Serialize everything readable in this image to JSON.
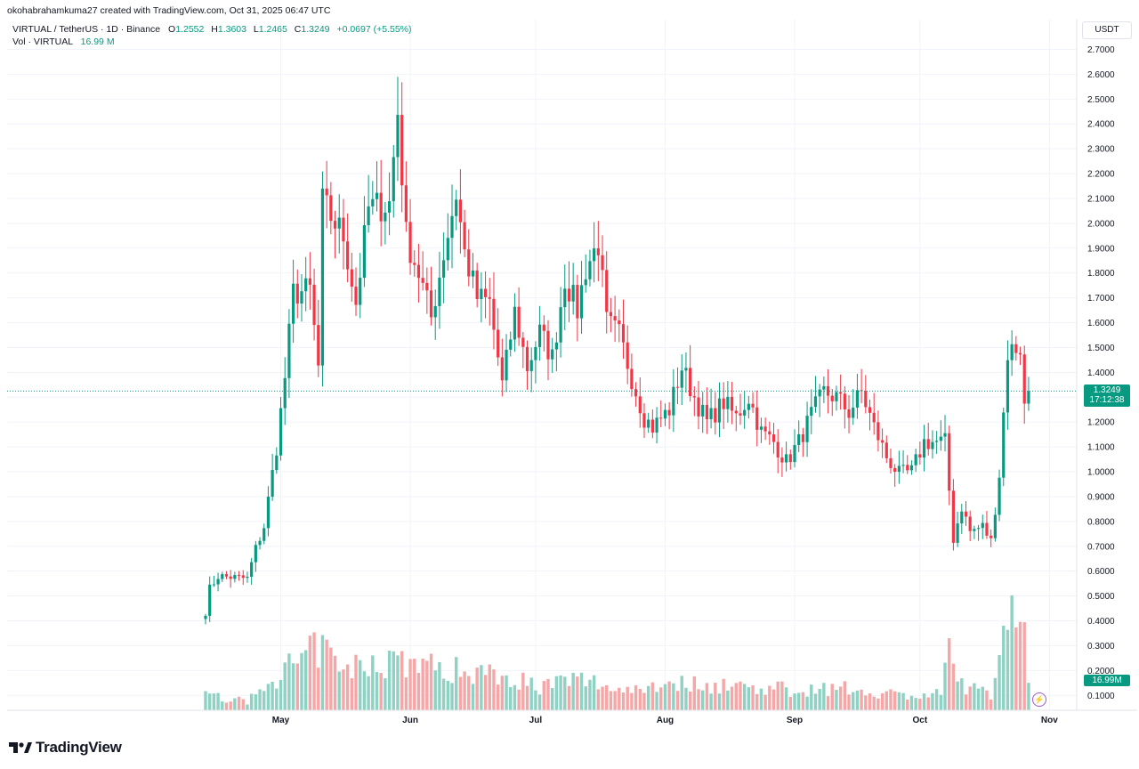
{
  "credit": "okohabrahamkuma27 created with TradingView.com, Oct 31, 2025 06:47 UTC",
  "symbol_line": {
    "symbol": "VIRTUAL / TetherUS · 1D · Binance",
    "o_label": "O",
    "o_value": "1.2552",
    "h_label": "H",
    "h_value": "1.3603",
    "l_label": "L",
    "l_value": "1.2465",
    "c_label": "C",
    "c_value": "1.3249",
    "change": "+0.0697 (+5.55%)"
  },
  "volume_line": {
    "label": "Vol · VIRTUAL",
    "value": "16.99 M"
  },
  "currency": "USDT",
  "price_badge": {
    "price": "1.3249",
    "countdown": "17:12:38"
  },
  "volume_badge": "16.99M",
  "brand": "TradingView",
  "colors": {
    "up": "#089981",
    "down": "#f23645",
    "up_vol": "#8fd1c3",
    "down_vol": "#f5a7a7"
  },
  "chart_data": {
    "type": "candlestick",
    "y_ticks": [
      "2.7000",
      "2.6000",
      "2.5000",
      "2.4000",
      "2.3000",
      "2.2000",
      "2.1000",
      "2.0000",
      "1.9000",
      "1.8000",
      "1.7000",
      "1.6000",
      "1.5000",
      "1.4000",
      "1.3000",
      "1.2000",
      "1.1000",
      "1.0000",
      "0.9000",
      "0.8000",
      "0.7000",
      "0.6000",
      "0.5000",
      "0.4000",
      "0.3000",
      "0.2000",
      "0.1000"
    ],
    "ylim": [
      0.04,
      2.82
    ],
    "x_ticks": [
      {
        "label": "May",
        "day": 18
      },
      {
        "label": "Jun",
        "day": 49
      },
      {
        "label": "Jul",
        "day": 79
      },
      {
        "label": "Aug",
        "day": 110
      },
      {
        "label": "Sep",
        "day": 141
      },
      {
        "label": "Oct",
        "day": 171
      },
      {
        "label": "Nov",
        "day": 202
      }
    ],
    "last_price": 1.3249,
    "volume_ref": [
      0,
      0.14
    ],
    "keyframes": [
      [
        0,
        0.42
      ],
      [
        1,
        0.53
      ],
      [
        3,
        0.58
      ],
      [
        10,
        0.57
      ],
      [
        12,
        0.69
      ],
      [
        14,
        0.78
      ],
      [
        17,
        1.1
      ],
      [
        19,
        1.38
      ],
      [
        21,
        1.72
      ],
      [
        25,
        1.73
      ],
      [
        27,
        1.42
      ],
      [
        28,
        2.08
      ],
      [
        33,
        1.95
      ],
      [
        36,
        1.68
      ],
      [
        39,
        2.06
      ],
      [
        44,
        2.08
      ],
      [
        46,
        2.45
      ],
      [
        48,
        1.95
      ],
      [
        51,
        1.8
      ],
      [
        54,
        1.62
      ],
      [
        57,
        1.88
      ],
      [
        60,
        2.12
      ],
      [
        62,
        1.88
      ],
      [
        65,
        1.7
      ],
      [
        68,
        1.68
      ],
      [
        71,
        1.35
      ],
      [
        74,
        1.64
      ],
      [
        77,
        1.42
      ],
      [
        80,
        1.56
      ],
      [
        83,
        1.46
      ],
      [
        86,
        1.78
      ],
      [
        89,
        1.65
      ],
      [
        91,
        1.82
      ],
      [
        94,
        1.92
      ],
      [
        96,
        1.6
      ],
      [
        99,
        1.55
      ],
      [
        102,
        1.38
      ],
      [
        105,
        1.22
      ],
      [
        107,
        1.18
      ],
      [
        111,
        1.25
      ],
      [
        114,
        1.42
      ],
      [
        117,
        1.3
      ],
      [
        120,
        1.2
      ],
      [
        124,
        1.28
      ],
      [
        127,
        1.22
      ],
      [
        130,
        1.3
      ],
      [
        133,
        1.16
      ],
      [
        136,
        1.12
      ],
      [
        139,
        1.04
      ],
      [
        142,
        1.12
      ],
      [
        145,
        1.23
      ],
      [
        148,
        1.32
      ],
      [
        151,
        1.3
      ],
      [
        154,
        1.24
      ],
      [
        157,
        1.32
      ],
      [
        160,
        1.18
      ],
      [
        163,
        1.06
      ],
      [
        166,
        0.99
      ],
      [
        169,
        1.0
      ],
      [
        172,
        1.12
      ],
      [
        175,
        1.12
      ],
      [
        177,
        1.12
      ],
      [
        179,
        0.73
      ],
      [
        181,
        0.86
      ],
      [
        183,
        0.76
      ],
      [
        186,
        0.78
      ],
      [
        188,
        0.72
      ],
      [
        190,
        0.99
      ],
      [
        192,
        1.48
      ],
      [
        194,
        1.5
      ],
      [
        195,
        1.5
      ],
      [
        196,
        1.26
      ],
      [
        197,
        1.32
      ]
    ],
    "volume_keyframes": [
      [
        0,
        0.09
      ],
      [
        10,
        0.05
      ],
      [
        18,
        0.22
      ],
      [
        24,
        0.3
      ],
      [
        28,
        0.38
      ],
      [
        32,
        0.22
      ],
      [
        40,
        0.28
      ],
      [
        46,
        0.3
      ],
      [
        56,
        0.24
      ],
      [
        70,
        0.22
      ],
      [
        80,
        0.14
      ],
      [
        90,
        0.18
      ],
      [
        100,
        0.12
      ],
      [
        110,
        0.16
      ],
      [
        120,
        0.15
      ],
      [
        130,
        0.14
      ],
      [
        140,
        0.12
      ],
      [
        150,
        0.13
      ],
      [
        160,
        0.11
      ],
      [
        170,
        0.08
      ],
      [
        176,
        0.1
      ],
      [
        178,
        0.32
      ],
      [
        180,
        0.17
      ],
      [
        184,
        0.12
      ],
      [
        188,
        0.09
      ],
      [
        190,
        0.35
      ],
      [
        192,
        0.7
      ],
      [
        194,
        0.52
      ],
      [
        196,
        0.4
      ],
      [
        197,
        0.17
      ]
    ]
  }
}
